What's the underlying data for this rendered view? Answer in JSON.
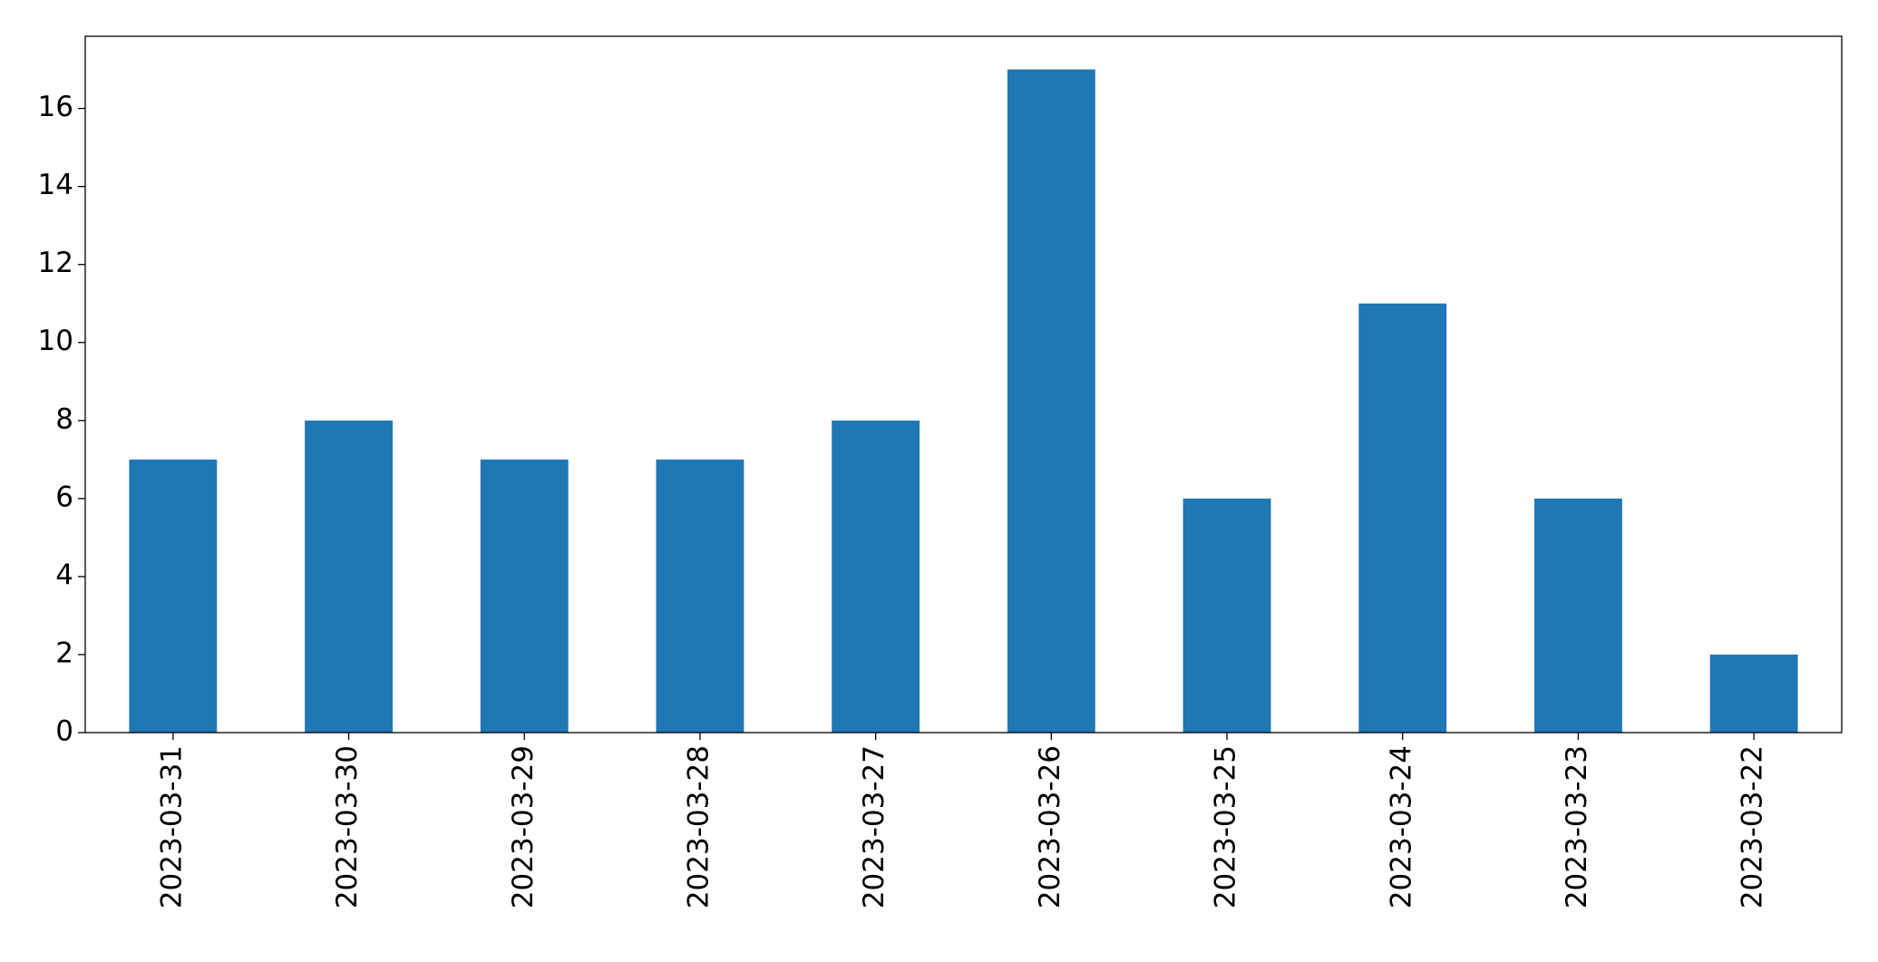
{
  "chart_data": {
    "type": "bar",
    "categories": [
      "2023-03-31",
      "2023-03-30",
      "2023-03-29",
      "2023-03-28",
      "2023-03-27",
      "2023-03-26",
      "2023-03-25",
      "2023-03-24",
      "2023-03-23",
      "2023-03-22"
    ],
    "values": [
      7,
      8,
      7,
      7,
      8,
      17,
      6,
      11,
      6,
      2
    ],
    "color": "#1f77b4",
    "ylim": [
      0,
      17.85
    ],
    "yticks": [
      0,
      2,
      4,
      6,
      8,
      10,
      12,
      14,
      16
    ],
    "grid": false
  }
}
